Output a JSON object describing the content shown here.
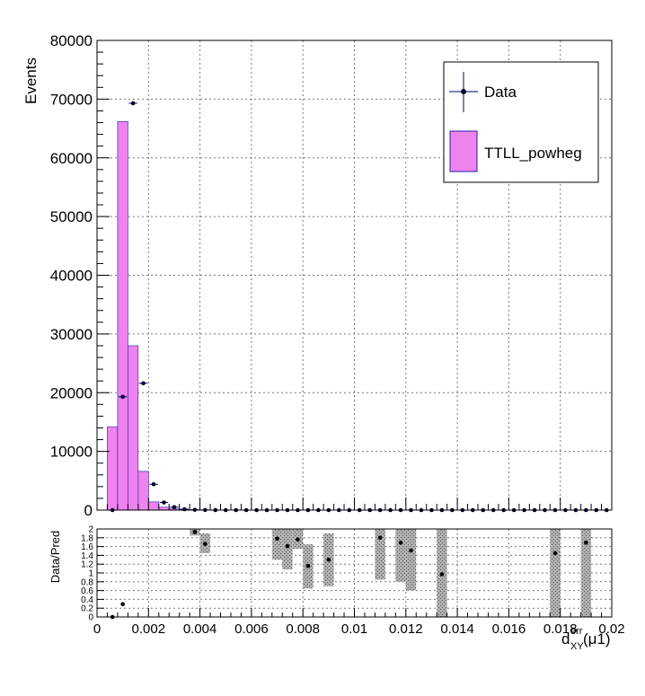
{
  "chart_data": [
    {
      "type": "bar",
      "ylabel": "Events",
      "xlim": [
        0,
        0.02
      ],
      "ylim": [
        0,
        80000
      ],
      "y_ticks": [
        "0",
        "10000",
        "20000",
        "30000",
        "40000",
        "50000",
        "60000",
        "70000",
        "80000"
      ],
      "grid": true,
      "legend_position": "top-right",
      "legend": [
        "Data",
        "TTLL_powheg"
      ],
      "bin_width": 0.0004,
      "bin_edges_start": 0.0004,
      "mc_series": {
        "name": "TTLL_powheg",
        "color": "#ee82ee",
        "values": [
          14200,
          66200,
          28000,
          6600,
          1400,
          500,
          200,
          80,
          30,
          10,
          0,
          0,
          0,
          0,
          0,
          0,
          0,
          0,
          0,
          0,
          0,
          0,
          0,
          0,
          0,
          0,
          0,
          0,
          0,
          0,
          0,
          0,
          0,
          0,
          0,
          0,
          0,
          0,
          0,
          0,
          0,
          0,
          0,
          0,
          0,
          0,
          0,
          0,
          0
        ]
      },
      "data_series": {
        "name": "Data",
        "color": "#000066",
        "values": [
          0,
          19300,
          69300,
          21600,
          4400,
          1300,
          500,
          150,
          50,
          20,
          5,
          0,
          0,
          0,
          0,
          0,
          0,
          0,
          0,
          0,
          0,
          0,
          0,
          0,
          0,
          0,
          0,
          0,
          0,
          0,
          0,
          0,
          0,
          0,
          0,
          0,
          0,
          0,
          0,
          0,
          0,
          0,
          0,
          0,
          0,
          0,
          0,
          0,
          0
        ]
      }
    },
    {
      "type": "scatter",
      "ylabel": "Data/Pred",
      "xlabel_main": "d",
      "xlabel_sup": "err",
      "xlabel_sub": "XY",
      "xlabel_suffix": "(μ1)",
      "xlim": [
        0,
        0.02
      ],
      "ylim": [
        0,
        2
      ],
      "x_ticks": [
        "0",
        "0.002",
        "0.004",
        "0.006",
        "0.008",
        "0.01",
        "0.012",
        "0.014",
        "0.016",
        "0.018",
        "0.02"
      ],
      "y_ticks": [
        "0",
        "0.2",
        "0.4",
        "0.6",
        "0.8",
        "1",
        "1.2",
        "1.4",
        "1.6",
        "1.8",
        "2"
      ],
      "grid": true,
      "points": [
        {
          "x": 0.0006,
          "y": 0.0
        },
        {
          "x": 0.001,
          "y": 0.29
        },
        {
          "x": 0.0038,
          "y": 1.93
        },
        {
          "x": 0.0042,
          "y": 1.66
        },
        {
          "x": 0.007,
          "y": 1.78
        },
        {
          "x": 0.0074,
          "y": 1.61
        },
        {
          "x": 0.0078,
          "y": 1.76
        },
        {
          "x": 0.0082,
          "y": 1.16
        },
        {
          "x": 0.009,
          "y": 1.3
        },
        {
          "x": 0.011,
          "y": 1.8
        },
        {
          "x": 0.0118,
          "y": 1.69
        },
        {
          "x": 0.0122,
          "y": 1.51
        },
        {
          "x": 0.0134,
          "y": 0.97
        },
        {
          "x": 0.0178,
          "y": 1.45
        },
        {
          "x": 0.019,
          "y": 1.69
        }
      ],
      "uncertainty_bands": [
        {
          "x": 0.0038,
          "lo": 1.85,
          "hi": 2.0
        },
        {
          "x": 0.0042,
          "lo": 1.45,
          "hi": 1.9
        },
        {
          "x": 0.007,
          "lo": 1.3,
          "hi": 2.0
        },
        {
          "x": 0.0074,
          "lo": 1.08,
          "hi": 2.0
        },
        {
          "x": 0.0078,
          "lo": 1.55,
          "hi": 2.0
        },
        {
          "x": 0.0082,
          "lo": 0.65,
          "hi": 1.65
        },
        {
          "x": 0.009,
          "lo": 0.7,
          "hi": 1.9
        },
        {
          "x": 0.011,
          "lo": 0.85,
          "hi": 2.0
        },
        {
          "x": 0.0118,
          "lo": 0.8,
          "hi": 2.0
        },
        {
          "x": 0.0122,
          "lo": 0.6,
          "hi": 2.0
        },
        {
          "x": 0.0134,
          "lo": 0.0,
          "hi": 2.0
        },
        {
          "x": 0.0178,
          "lo": 0.0,
          "hi": 2.0
        },
        {
          "x": 0.019,
          "lo": 0.0,
          "hi": 2.0
        }
      ]
    }
  ]
}
